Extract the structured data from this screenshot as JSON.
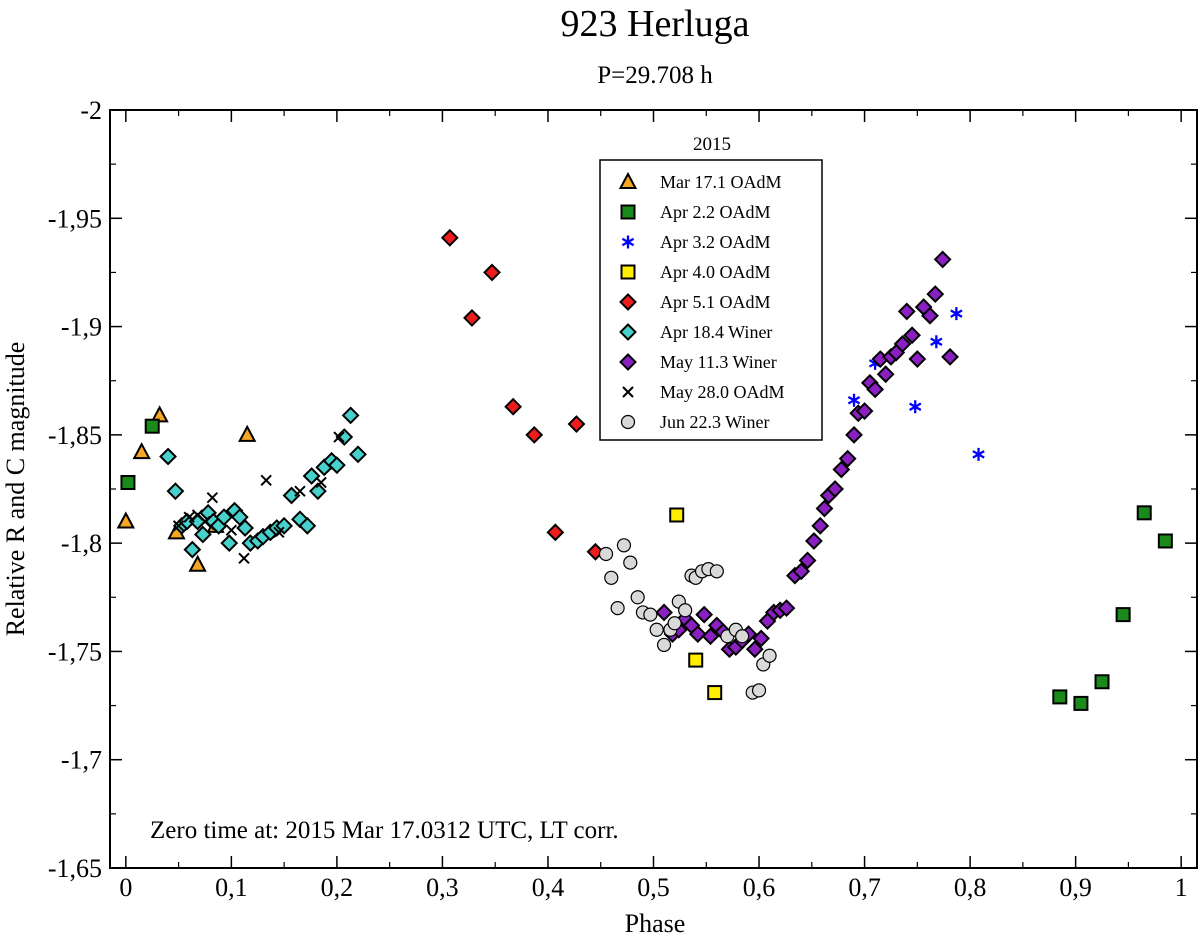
{
  "chart_data": {
    "type": "scatter",
    "title": "923 Herluga",
    "subtitle": "P=29.708 h",
    "xlabel": "Phase",
    "ylabel": "Relative R and C magnitude",
    "xlim": [
      -0.015,
      1.015
    ],
    "ylim": [
      -2.0,
      -1.65
    ],
    "y_inverted": true,
    "x_ticks": [
      0,
      0.1,
      0.2,
      0.3,
      0.4,
      0.5,
      0.6,
      0.7,
      0.8,
      0.9,
      1
    ],
    "x_tick_labels": [
      "0",
      "0,1",
      "0,2",
      "0,3",
      "0,4",
      "0,5",
      "0,6",
      "0,7",
      "0,8",
      "0,9",
      "1"
    ],
    "y_ticks": [
      -2,
      -1.95,
      -1.9,
      -1.85,
      -1.8,
      -1.75,
      -1.7,
      -1.65
    ],
    "y_tick_labels": [
      "-2",
      "-1,95",
      "-1,9",
      "-1,85",
      "-1,8",
      "-1,75",
      "-1,7",
      "-1,65"
    ],
    "grid": false,
    "legend_title": "2015",
    "legend_position": "top-center",
    "annotation": "Zero time at: 2015 Mar 17.0312 UTC, LT corr.",
    "series": [
      {
        "name": "Mar 17.1 OAdM",
        "marker": "triangle",
        "color": "#f5a623",
        "points": [
          [
            0,
            -1.81
          ],
          [
            0.015,
            -1.842
          ],
          [
            0.032,
            -1.859
          ],
          [
            0.048,
            -1.805
          ],
          [
            0.068,
            -1.79
          ],
          [
            0.085,
            -1.808
          ],
          [
            0.115,
            -1.85
          ]
        ]
      },
      {
        "name": "Apr 2.2 OAdM",
        "marker": "square",
        "color": "#1a8a1a",
        "points": [
          [
            0.002,
            -1.828
          ],
          [
            0.025,
            -1.854
          ],
          [
            0.885,
            -1.729
          ],
          [
            0.905,
            -1.726
          ],
          [
            0.925,
            -1.736
          ],
          [
            0.945,
            -1.767
          ],
          [
            0.965,
            -1.814
          ],
          [
            0.985,
            -1.801
          ]
        ]
      },
      {
        "name": "Apr 3.2 OAdM",
        "marker": "asterisk",
        "color": "#0000ff",
        "points": [
          [
            0.69,
            -1.866
          ],
          [
            0.71,
            -1.883
          ],
          [
            0.748,
            -1.863
          ],
          [
            0.768,
            -1.893
          ],
          [
            0.787,
            -1.906
          ],
          [
            0.808,
            -1.841
          ]
        ]
      },
      {
        "name": "Apr 4.0 OAdM",
        "marker": "square",
        "color": "#ffee00",
        "points": [
          [
            0.522,
            -1.813
          ],
          [
            0.54,
            -1.746
          ],
          [
            0.558,
            -1.731
          ]
        ]
      },
      {
        "name": "Apr 5.1 OAdM",
        "marker": "diamond",
        "color": "#ee1c1c",
        "points": [
          [
            0.307,
            -1.941
          ],
          [
            0.328,
            -1.904
          ],
          [
            0.347,
            -1.925
          ],
          [
            0.367,
            -1.863
          ],
          [
            0.387,
            -1.85
          ],
          [
            0.407,
            -1.805
          ],
          [
            0.427,
            -1.855
          ],
          [
            0.445,
            -1.796
          ]
        ]
      },
      {
        "name": "Apr 18.4 Winer",
        "marker": "diamond",
        "color": "#48d1cc",
        "points": [
          [
            0.04,
            -1.84
          ],
          [
            0.047,
            -1.824
          ],
          [
            0.053,
            -1.808
          ],
          [
            0.058,
            -1.81
          ],
          [
            0.063,
            -1.797
          ],
          [
            0.068,
            -1.81
          ],
          [
            0.073,
            -1.804
          ],
          [
            0.078,
            -1.814
          ],
          [
            0.083,
            -1.81
          ],
          [
            0.088,
            -1.808
          ],
          [
            0.093,
            -1.812
          ],
          [
            0.098,
            -1.8
          ],
          [
            0.103,
            -1.815
          ],
          [
            0.108,
            -1.812
          ],
          [
            0.113,
            -1.807
          ],
          [
            0.118,
            -1.8
          ],
          [
            0.125,
            -1.801
          ],
          [
            0.13,
            -1.803
          ],
          [
            0.137,
            -1.805
          ],
          [
            0.143,
            -1.807
          ],
          [
            0.15,
            -1.808
          ],
          [
            0.157,
            -1.822
          ],
          [
            0.165,
            -1.811
          ],
          [
            0.172,
            -1.808
          ],
          [
            0.176,
            -1.831
          ],
          [
            0.182,
            -1.824
          ],
          [
            0.188,
            -1.835
          ],
          [
            0.195,
            -1.838
          ],
          [
            0.2,
            -1.836
          ],
          [
            0.207,
            -1.849
          ],
          [
            0.213,
            -1.859
          ],
          [
            0.22,
            -1.841
          ]
        ]
      },
      {
        "name": "May 11.3 Winer",
        "marker": "diamond",
        "color": "#8a1fc2",
        "points": [
          [
            0.51,
            -1.768
          ],
          [
            0.518,
            -1.758
          ],
          [
            0.524,
            -1.76
          ],
          [
            0.53,
            -1.765
          ],
          [
            0.536,
            -1.762
          ],
          [
            0.542,
            -1.758
          ],
          [
            0.548,
            -1.767
          ],
          [
            0.554,
            -1.757
          ],
          [
            0.56,
            -1.762
          ],
          [
            0.566,
            -1.759
          ],
          [
            0.572,
            -1.751
          ],
          [
            0.578,
            -1.752
          ],
          [
            0.584,
            -1.755
          ],
          [
            0.59,
            -1.758
          ],
          [
            0.596,
            -1.751
          ],
          [
            0.602,
            -1.756
          ],
          [
            0.608,
            -1.764
          ],
          [
            0.614,
            -1.768
          ],
          [
            0.62,
            -1.769
          ],
          [
            0.626,
            -1.77
          ],
          [
            0.634,
            -1.785
          ],
          [
            0.64,
            -1.787
          ],
          [
            0.646,
            -1.792
          ],
          [
            0.652,
            -1.801
          ],
          [
            0.658,
            -1.808
          ],
          [
            0.662,
            -1.816
          ],
          [
            0.666,
            -1.822
          ],
          [
            0.672,
            -1.825
          ],
          [
            0.678,
            -1.834
          ],
          [
            0.684,
            -1.839
          ],
          [
            0.69,
            -1.85
          ],
          [
            0.694,
            -1.86
          ],
          [
            0.7,
            -1.861
          ],
          [
            0.705,
            -1.874
          ],
          [
            0.71,
            -1.871
          ],
          [
            0.715,
            -1.885
          ],
          [
            0.72,
            -1.878
          ],
          [
            0.725,
            -1.886
          ],
          [
            0.73,
            -1.888
          ],
          [
            0.736,
            -1.892
          ],
          [
            0.74,
            -1.907
          ],
          [
            0.745,
            -1.896
          ],
          [
            0.75,
            -1.885
          ],
          [
            0.756,
            -1.909
          ],
          [
            0.762,
            -1.905
          ],
          [
            0.767,
            -1.915
          ],
          [
            0.774,
            -1.931
          ],
          [
            0.781,
            -1.886
          ]
        ]
      },
      {
        "name": "May 28.0 OAdM",
        "marker": "cross",
        "color": "#000000",
        "points": [
          [
            0.05,
            -1.808
          ],
          [
            0.06,
            -1.812
          ],
          [
            0.068,
            -1.813
          ],
          [
            0.075,
            -1.81
          ],
          [
            0.082,
            -1.821
          ],
          [
            0.1,
            -1.806
          ],
          [
            0.112,
            -1.793
          ],
          [
            0.133,
            -1.829
          ],
          [
            0.145,
            -1.805
          ],
          [
            0.165,
            -1.824
          ],
          [
            0.185,
            -1.828
          ],
          [
            0.202,
            -1.849
          ]
        ]
      },
      {
        "name": "Jun 22.3 Winer",
        "marker": "circle",
        "color": "#d9d9d9",
        "points": [
          [
            0.455,
            -1.795
          ],
          [
            0.46,
            -1.784
          ],
          [
            0.466,
            -1.77
          ],
          [
            0.472,
            -1.799
          ],
          [
            0.478,
            -1.791
          ],
          [
            0.485,
            -1.775
          ],
          [
            0.49,
            -1.768
          ],
          [
            0.497,
            -1.767
          ],
          [
            0.503,
            -1.76
          ],
          [
            0.51,
            -1.753
          ],
          [
            0.516,
            -1.76
          ],
          [
            0.52,
            -1.763
          ],
          [
            0.524,
            -1.773
          ],
          [
            0.53,
            -1.769
          ],
          [
            0.536,
            -1.785
          ],
          [
            0.54,
            -1.784
          ],
          [
            0.546,
            -1.787
          ],
          [
            0.552,
            -1.788
          ],
          [
            0.56,
            -1.787
          ],
          [
            0.57,
            -1.757
          ],
          [
            0.578,
            -1.76
          ],
          [
            0.584,
            -1.757
          ],
          [
            0.594,
            -1.731
          ],
          [
            0.6,
            -1.732
          ],
          [
            0.604,
            -1.744
          ],
          [
            0.61,
            -1.748
          ]
        ]
      }
    ]
  }
}
